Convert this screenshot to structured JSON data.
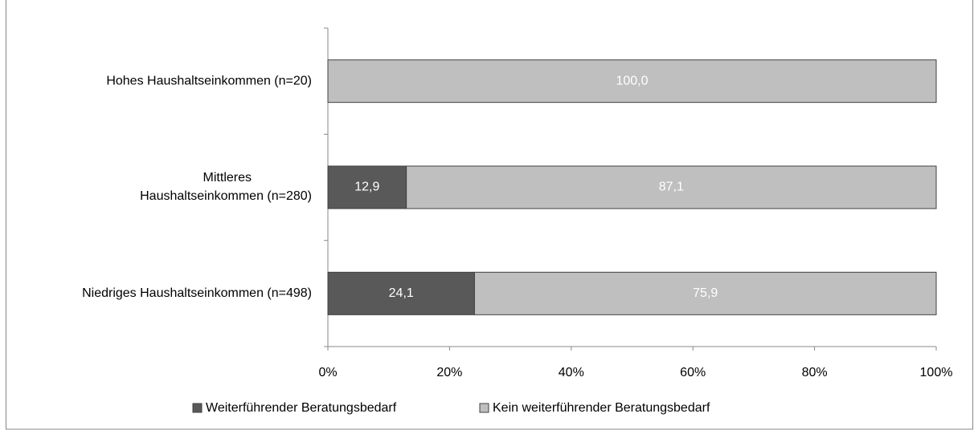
{
  "chart_data": {
    "type": "stacked-bar-horizontal",
    "categories": [
      "Hohes Haushaltseinkommen (n=20)",
      "Mittleres\nHaushaltseinkommen (n=280)",
      "Niedriges Haushaltseinkommen (n=498)"
    ],
    "series": [
      {
        "name": "Weiterführender Beratungsbedarf",
        "color": "#595959",
        "values": [
          0,
          12.9,
          24.1
        ],
        "value_labels": [
          null,
          "12,9",
          "24,1"
        ]
      },
      {
        "name": "Kein weiterführender Beratungsbedarf",
        "color": "#bfbfbf",
        "values": [
          100,
          87.1,
          75.9
        ],
        "value_labels": [
          "100,0",
          "87,1",
          "75,9"
        ]
      }
    ],
    "xlim": [
      0,
      100
    ],
    "xticks": [
      {
        "value": 0,
        "label": "0%"
      },
      {
        "value": 20,
        "label": "20%"
      },
      {
        "value": 40,
        "label": "40%"
      },
      {
        "value": 60,
        "label": "60%"
      },
      {
        "value": 80,
        "label": "80%"
      },
      {
        "value": 100,
        "label": "100%"
      }
    ],
    "legend": "bottom"
  }
}
